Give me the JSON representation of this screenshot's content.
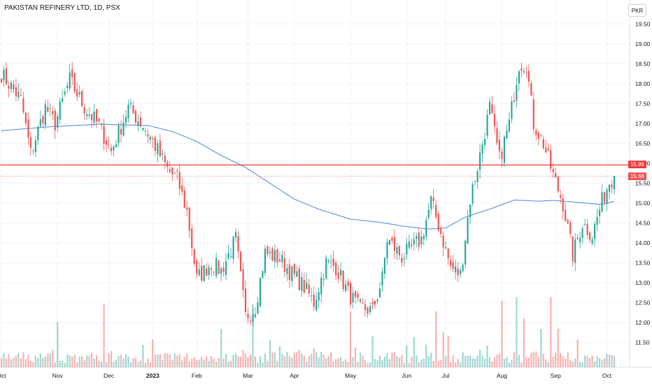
{
  "header": {
    "title": "PAKISTAN REFINERY LTD, 1D, PSX",
    "currency": "PKR"
  },
  "chart_data": {
    "type": "candlestick",
    "y_tick_labels": [
      "11.50",
      "12.00",
      "12.50",
      "13.00",
      "13.50",
      "14.00",
      "14.50",
      "15.00",
      "15.50",
      "16.00",
      "16.50",
      "17.00",
      "17.50",
      "18.00",
      "18.50",
      "19.00",
      "19.50"
    ],
    "x_tick_labels": [
      "Oct",
      "Nov",
      "Dec",
      "2023",
      "Feb",
      "Mar",
      "Apr",
      "May",
      "Jun",
      "Jul",
      "Aug",
      "Sep",
      "Oct"
    ],
    "ylim": [
      11.25,
      19.75
    ],
    "colors": {
      "up": "#26a69a",
      "down": "#ef5350",
      "ma": "#5b8fe0",
      "hline": "#ef3a3a"
    },
    "horizontal_line": 15.96,
    "last_price": 15.68,
    "price_labels": {
      "hline_label": "15.96",
      "last_label": "15.68"
    },
    "candle_count": 252,
    "month_starts": [
      0,
      23,
      44,
      62,
      80,
      101,
      120,
      143,
      166,
      182,
      205,
      227,
      248
    ],
    "anchors": [
      [
        0,
        18.25
      ],
      [
        8,
        17.6
      ],
      [
        12,
        16.25
      ],
      [
        18,
        17.4
      ],
      [
        22,
        17.0
      ],
      [
        28,
        18.1
      ],
      [
        34,
        17.4
      ],
      [
        40,
        16.95
      ],
      [
        45,
        16.3
      ],
      [
        52,
        17.4
      ],
      [
        58,
        16.95
      ],
      [
        62,
        16.55
      ],
      [
        68,
        15.85
      ],
      [
        72,
        15.6
      ],
      [
        76,
        14.8
      ],
      [
        80,
        13.1
      ],
      [
        86,
        13.5
      ],
      [
        90,
        13.3
      ],
      [
        96,
        14.1
      ],
      [
        100,
        12.15
      ],
      [
        104,
        12.4
      ],
      [
        108,
        13.75
      ],
      [
        114,
        13.6
      ],
      [
        118,
        13.3
      ],
      [
        124,
        12.9
      ],
      [
        128,
        12.5
      ],
      [
        133,
        13.5
      ],
      [
        137,
        13.4
      ],
      [
        142,
        12.75
      ],
      [
        146,
        12.4
      ],
      [
        152,
        12.3
      ],
      [
        156,
        13.1
      ],
      [
        158,
        14.1
      ],
      [
        164,
        13.65
      ],
      [
        172,
        14.1
      ],
      [
        176,
        15.05
      ],
      [
        180,
        14.25
      ],
      [
        184,
        13.4
      ],
      [
        188,
        13.2
      ],
      [
        192,
        15.1
      ],
      [
        196,
        16.2
      ],
      [
        200,
        17.4
      ],
      [
        204,
        16.1
      ],
      [
        208,
        17.0
      ],
      [
        212,
        18.5
      ],
      [
        215,
        18.5
      ],
      [
        218,
        17.0
      ],
      [
        222,
        16.5
      ],
      [
        226,
        15.7
      ],
      [
        230,
        15.0
      ],
      [
        234,
        13.7
      ],
      [
        238,
        14.5
      ],
      [
        242,
        14.2
      ],
      [
        246,
        15.05
      ],
      [
        249,
        15.55
      ],
      [
        251,
        15.68
      ]
    ],
    "ma_anchors": [
      [
        0,
        16.82
      ],
      [
        20,
        16.92
      ],
      [
        40,
        16.98
      ],
      [
        60,
        16.95
      ],
      [
        70,
        16.8
      ],
      [
        80,
        16.55
      ],
      [
        90,
        16.2
      ],
      [
        100,
        15.9
      ],
      [
        110,
        15.5
      ],
      [
        120,
        15.1
      ],
      [
        130,
        14.85
      ],
      [
        143,
        14.6
      ],
      [
        155,
        14.52
      ],
      [
        165,
        14.42
      ],
      [
        175,
        14.35
      ],
      [
        182,
        14.38
      ],
      [
        190,
        14.65
      ],
      [
        200,
        14.85
      ],
      [
        210,
        15.08
      ],
      [
        220,
        15.05
      ],
      [
        226,
        15.07
      ],
      [
        236,
        15.02
      ],
      [
        245,
        14.97
      ],
      [
        251,
        15.04
      ]
    ],
    "volume_spikes": [
      [
        23,
        0.65
      ],
      [
        42,
        0.9
      ],
      [
        62,
        0.4
      ],
      [
        90,
        0.55
      ],
      [
        103,
        0.9
      ],
      [
        143,
        0.8
      ],
      [
        152,
        0.45
      ],
      [
        178,
        0.8
      ],
      [
        181,
        0.5
      ],
      [
        205,
        0.95
      ],
      [
        211,
        1.0
      ],
      [
        214,
        0.7
      ],
      [
        221,
        0.55
      ],
      [
        225,
        1.0
      ],
      [
        228,
        0.55
      ],
      [
        236,
        0.4
      ]
    ]
  }
}
